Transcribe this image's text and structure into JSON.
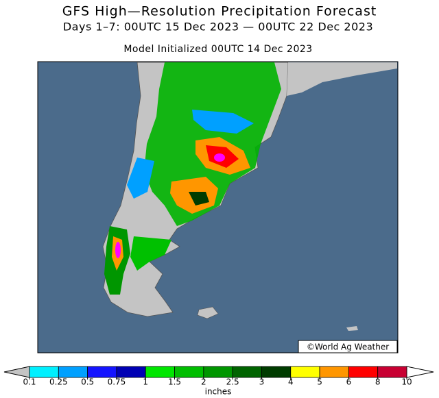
{
  "title": "GFS High—Resolution Precipitation Forecast",
  "subtitle": "Days 1–7: 00UTC 15 Dec 2023 — 00UTC 22 Dec 2023",
  "initialized": "Model Initialized 00UTC 14 Dec 2023",
  "credit": "©World Ag Weather",
  "colorbar": {
    "label": "inches",
    "ticks": [
      0.1,
      0.25,
      0.5,
      0.75,
      1,
      1.5,
      2,
      2.5,
      3,
      4,
      5,
      6,
      8,
      10
    ],
    "under_color": "#c4c4c4",
    "over_color": "#ffffff",
    "colors": [
      "#00f0ff",
      "#00a0ff",
      "#1414ff",
      "#0000b4",
      "#00e600",
      "#00be00",
      "#009600",
      "#006400",
      "#003c00",
      "#ffff00",
      "#ff9600",
      "#ff0000",
      "#c80032",
      "#ff00ff",
      "#a050dc"
    ]
  }
}
